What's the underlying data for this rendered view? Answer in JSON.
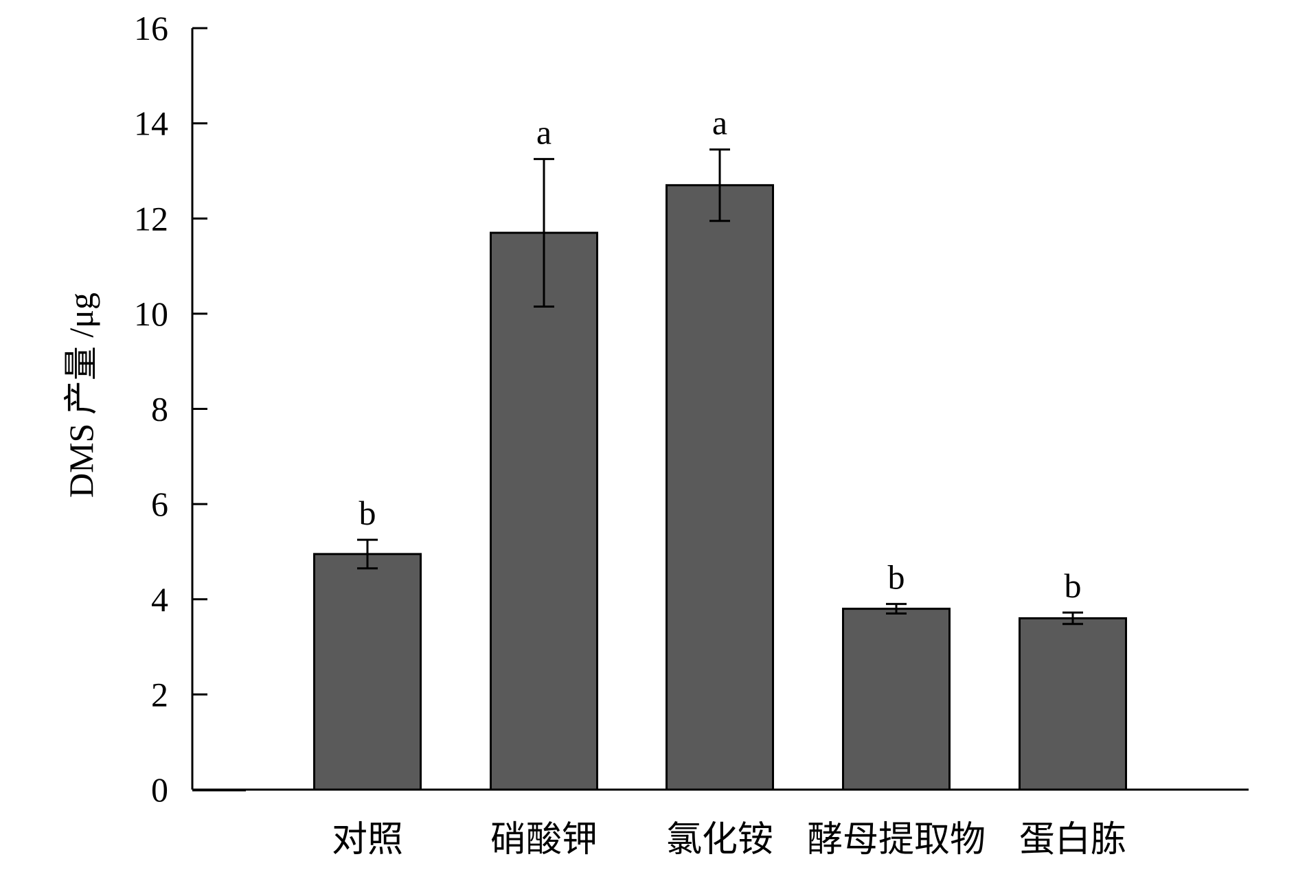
{
  "chart_data": {
    "type": "bar",
    "title": "",
    "xlabel": "",
    "ylabel": "DMS 产量 /μg",
    "ylim": [
      0,
      16
    ],
    "yticks": [
      0,
      2,
      4,
      6,
      8,
      10,
      12,
      14,
      16
    ],
    "categories": [
      "对照",
      "硝酸钾",
      "氯化铵",
      "酵母提取物",
      "蛋白胨"
    ],
    "values": [
      4.95,
      11.7,
      12.7,
      3.8,
      3.6
    ],
    "error": [
      0.3,
      1.55,
      0.75,
      0.1,
      0.12
    ],
    "significance": [
      "b",
      "a",
      "a",
      "b",
      "b"
    ],
    "grid": false,
    "legend": "none",
    "colors": {
      "bar": "#5a5a5a",
      "bar_edge": "#000000",
      "axis": "#000000"
    }
  }
}
